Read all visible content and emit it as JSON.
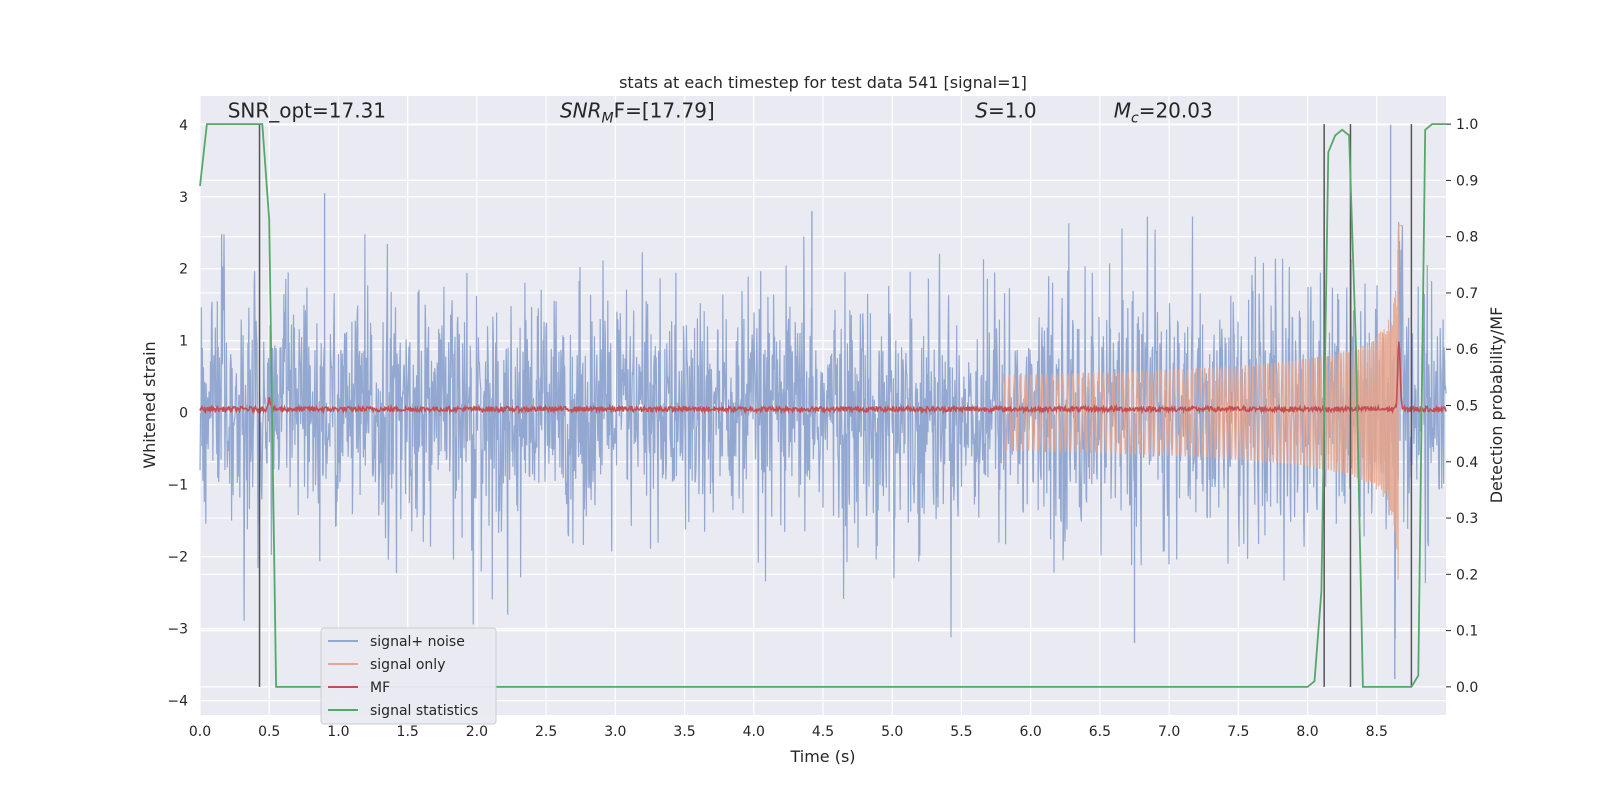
{
  "chart_data": {
    "type": "line",
    "title": "stats at each timestep for test data 541 [signal=1]",
    "xlabel": "Time (s)",
    "ylabel_left": "Whitened strain",
    "ylabel_right": "Detection probability/MF",
    "xlim": [
      0.0,
      9.0
    ],
    "ylim_left": [
      -4.2,
      4.4
    ],
    "ylim_right": [
      -0.05,
      1.05
    ],
    "xticks": [
      0.0,
      0.5,
      1.0,
      1.5,
      2.0,
      2.5,
      3.0,
      3.5,
      4.0,
      4.5,
      5.0,
      5.5,
      6.0,
      6.5,
      7.0,
      7.5,
      8.0,
      8.5
    ],
    "xtick_labels": [
      "0.0",
      "0.5",
      "1.0",
      "1.5",
      "2.0",
      "2.5",
      "3.0",
      "3.5",
      "4.0",
      "4.5",
      "5.0",
      "5.5",
      "6.0",
      "6.5",
      "7.0",
      "7.5",
      "8.0",
      "8.5"
    ],
    "yticks_left": [
      -4,
      -3,
      -2,
      -1,
      0,
      1,
      2,
      3,
      4
    ],
    "ytick_labels_left": [
      "−4",
      "−3",
      "−2",
      "−1",
      "0",
      "1",
      "2",
      "3",
      "4"
    ],
    "yticks_right": [
      0.0,
      0.1,
      0.2,
      0.3,
      0.4,
      0.5,
      0.6,
      0.7,
      0.8,
      0.9,
      1.0
    ],
    "ytick_labels_right": [
      "0.0",
      "0.1",
      "0.2",
      "0.3",
      "0.4",
      "0.5",
      "0.6",
      "0.7",
      "0.8",
      "0.9",
      "1.0"
    ],
    "grid": true,
    "legend_placement": "lower-left",
    "annotations": {
      "snr_opt": "SNR_opt=17.31",
      "snr_mf_prefix": "SNR",
      "snr_mf_sub": "M",
      "snr_mf_suffix": "F=[17.79]",
      "s_var": "S",
      "s_value": "=1.0",
      "mc_var": "M",
      "mc_sub": "c",
      "mc_value": "=20.03"
    },
    "annotation_positions_data": {
      "snr_opt_x": 0.2,
      "snr_mf_x": 2.6,
      "s_x": 5.6,
      "mc_x": 6.6,
      "y": 4.1
    },
    "series": [
      {
        "name": "signal+ noise",
        "color": "#92a8d1",
        "kind": "noise",
        "amplitude_typical": 1.3,
        "amplitude_max": 4.0,
        "notable_peaks": [
          [
            0.9,
            3.05
          ],
          [
            4.42,
            2.8
          ],
          [
            8.6,
            4.0
          ],
          [
            6.75,
            -3.2
          ],
          [
            8.63,
            -3.7
          ]
        ]
      },
      {
        "name": "signal only",
        "color": "#e8a58c",
        "kind": "chirp",
        "t_start": 5.8,
        "t_merger": 8.66,
        "amplitude_max": 3.0
      },
      {
        "name": "MF",
        "color": "#c44e52",
        "kind": "mf",
        "baseline": 0.05,
        "jitter": 0.07,
        "peaks": [
          [
            0.5,
            0.2
          ],
          [
            8.66,
            1.0
          ]
        ]
      },
      {
        "name": "signal statistics",
        "color": "#55a868",
        "x": [
          0.0,
          0.05,
          0.1,
          0.15,
          0.2,
          0.25,
          0.3,
          0.35,
          0.4,
          0.45,
          0.5,
          0.55,
          0.6,
          7.9,
          8.0,
          8.05,
          8.1,
          8.15,
          8.2,
          8.25,
          8.3,
          8.35,
          8.4,
          8.45,
          8.5,
          8.55,
          8.6,
          8.65,
          8.7,
          8.75,
          8.8,
          8.85,
          8.9,
          8.95,
          9.0
        ],
        "y": [
          0.89,
          1.0,
          1.0,
          1.0,
          1.0,
          1.0,
          1.0,
          1.0,
          1.0,
          1.0,
          0.83,
          0.0,
          0.0,
          0.0,
          0.0,
          0.01,
          0.17,
          0.95,
          0.98,
          0.99,
          0.98,
          0.6,
          0.0,
          0.0,
          0.0,
          0.0,
          0.0,
          0.0,
          0.0,
          0.0,
          0.02,
          0.99,
          1.0,
          1.0,
          1.0
        ]
      }
    ],
    "vertical_lines": {
      "color": "#555555",
      "x": [
        0.43,
        8.12,
        8.31,
        8.75
      ],
      "y_top": [
        1.0,
        1.0,
        1.0,
        1.0
      ],
      "y_bottom": 0.0
    }
  }
}
